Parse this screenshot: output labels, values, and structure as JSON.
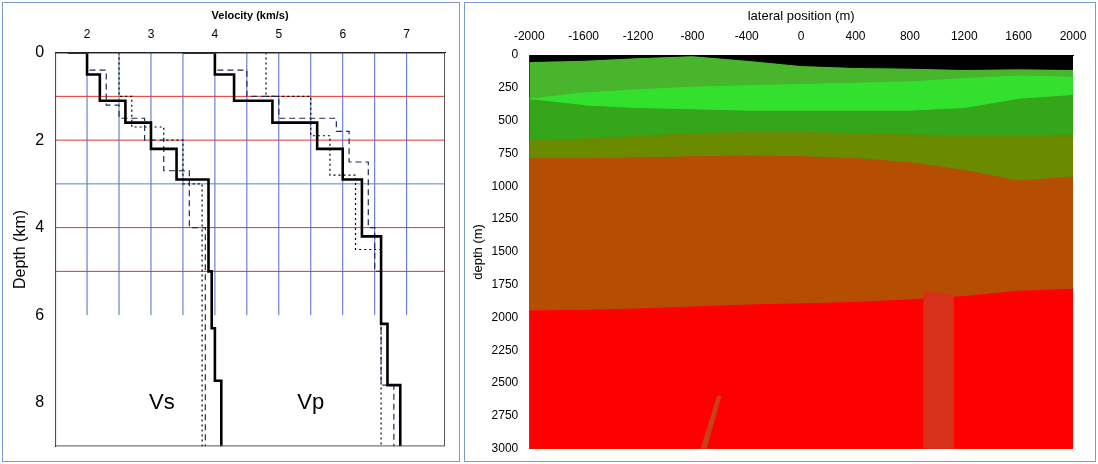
{
  "chart_data": [
    {
      "type": "line",
      "xlabel": "Velocity (km/s)",
      "ylabel": "Depth (km)",
      "xlim": [
        1.5,
        7.6
      ],
      "xticks": [
        2,
        3,
        4,
        5,
        6,
        7
      ],
      "ylim": [
        0,
        9
      ],
      "yticks": [
        0,
        2,
        4,
        6,
        8
      ],
      "grid": false,
      "series": [
        {
          "color": "#000000",
          "line_style": "solid",
          "x": [
            1.7,
            2.0,
            2.0,
            2.2,
            2.2,
            2.6,
            2.6,
            3.0,
            3.0,
            3.4,
            3.4,
            3.9,
            3.9,
            3.95,
            3.95,
            4.0,
            4.0,
            4.1,
            4.1
          ],
          "y": [
            0,
            0,
            0.5,
            0.5,
            1.1,
            1.1,
            1.6,
            1.6,
            2.2,
            2.2,
            2.9,
            2.9,
            5.0,
            5.0,
            6.3,
            6.3,
            7.5,
            7.5,
            9.0
          ]
        },
        {
          "color": "#1f2a55",
          "line_style": "dashed",
          "x": [
            2.0,
            2.0,
            2.3,
            2.3,
            2.5,
            2.5,
            2.9,
            2.9,
            3.2,
            3.2,
            3.6,
            3.6,
            3.85,
            3.85
          ],
          "y": [
            0,
            0.4,
            0.4,
            1.2,
            1.2,
            1.5,
            1.5,
            2.0,
            2.0,
            2.7,
            2.7,
            4.0,
            4.0,
            9.0
          ]
        },
        {
          "color": "#000000",
          "line_style": "dotted",
          "x": [
            2.5,
            2.5,
            2.7,
            2.7,
            3.2,
            3.2,
            3.5,
            3.5,
            3.8,
            3.8
          ],
          "y": [
            0,
            1.0,
            1.0,
            1.7,
            1.7,
            2.0,
            2.0,
            3.0,
            3.0,
            9.0
          ]
        },
        {
          "color": "#000000",
          "line_style": "solid",
          "x": [
            3.5,
            4.0,
            4.0,
            4.3,
            4.3,
            4.9,
            4.9,
            5.6,
            5.6,
            6.0,
            6.0,
            6.3,
            6.3,
            6.6,
            6.6,
            6.7,
            6.7,
            6.9,
            6.9
          ],
          "y": [
            0,
            0,
            0.5,
            0.5,
            1.1,
            1.1,
            1.6,
            1.6,
            2.2,
            2.2,
            2.9,
            2.9,
            4.2,
            4.2,
            6.2,
            6.2,
            7.6,
            7.6,
            9.0
          ]
        },
        {
          "color": "#1f2a55",
          "line_style": "dashed",
          "x": [
            4.0,
            4.0,
            4.5,
            4.5,
            5.0,
            5.0,
            5.9,
            5.9,
            6.1,
            6.1,
            6.4,
            6.4,
            6.5,
            6.5,
            6.6,
            6.6,
            6.8,
            6.8
          ],
          "y": [
            0,
            0.4,
            0.4,
            1.0,
            1.0,
            1.5,
            1.5,
            1.8,
            1.8,
            2.5,
            2.5,
            4.0,
            4.0,
            5.0,
            5.0,
            7.6,
            7.6,
            9.0
          ]
        },
        {
          "color": "#000000",
          "line_style": "dotted",
          "x": [
            4.8,
            4.8,
            5.5,
            5.5,
            5.8,
            5.8,
            6.2,
            6.2,
            6.6,
            6.6
          ],
          "y": [
            0,
            1.0,
            1.0,
            1.9,
            1.9,
            2.8,
            2.8,
            4.5,
            4.5,
            9.0
          ]
        }
      ],
      "hlines": [
        {
          "y": 1,
          "color": "#e8312c"
        },
        {
          "y": 2,
          "color": "#e8312c"
        },
        {
          "y": 3,
          "color": "#5b7fd4"
        },
        {
          "y": 4,
          "color": "#e8312c"
        },
        {
          "y": 5,
          "color": "#e8312c"
        }
      ],
      "vlines": {
        "x": [
          2,
          2.5,
          3,
          3.5,
          4,
          4.5,
          5,
          5.5,
          6,
          6.5,
          7
        ],
        "y_range": [
          0,
          6
        ],
        "color": "#4a6cc4"
      },
      "annotations": [
        {
          "text": "Vs",
          "x": 3.17,
          "y": 8.0
        },
        {
          "text": "Vp",
          "x": 5.5,
          "y": 8.0
        }
      ]
    },
    {
      "type": "area",
      "xlabel": "lateral position (m)",
      "ylabel": "depth (m)",
      "xlim": [
        -2000,
        2000
      ],
      "xticks": [
        -2000,
        -1600,
        -1200,
        -800,
        -400,
        0,
        400,
        800,
        1200,
        1600,
        2000
      ],
      "ylim": [
        0,
        3000
      ],
      "yticks": [
        0,
        250,
        500,
        750,
        1000,
        1250,
        1500,
        1750,
        2000,
        2250,
        2500,
        2750,
        3000
      ],
      "grid": false,
      "units": [
        {
          "color": "#48b52c",
          "x": [
            -2000,
            2000,
            2000,
            -2000
          ],
          "y": [
            0,
            0,
            3000,
            3000
          ]
        },
        {
          "color": "#35a51a",
          "x": [
            -2000,
            -1600,
            -1200,
            -800,
            -400,
            0,
            400,
            800,
            1200,
            1600,
            2000,
            2000,
            -2000
          ],
          "y": [
            340,
            380,
            400,
            410,
            420,
            420,
            420,
            420,
            400,
            330,
            300,
            3000,
            3000
          ]
        },
        {
          "color": "#33e02e",
          "x": [
            -2000,
            -1600,
            -1200,
            -800,
            -400,
            0,
            400,
            800,
            1200,
            1600,
            2000,
            2000,
            1600,
            1200,
            800,
            400,
            0,
            -400,
            -800,
            -1200,
            -1600
          ],
          "y": [
            335,
            290,
            265,
            245,
            235,
            225,
            215,
            205,
            180,
            160,
            170,
            300,
            330,
            400,
            420,
            420,
            420,
            420,
            410,
            400,
            380
          ]
        },
        {
          "color": "#6a8a00",
          "x": [
            -2000,
            -1600,
            -1200,
            -800,
            -400,
            0,
            400,
            800,
            1200,
            1600,
            2000,
            2000,
            -2000
          ],
          "y": [
            650,
            640,
            620,
            600,
            590,
            590,
            600,
            610,
            620,
            620,
            610,
            3000,
            3000
          ]
        },
        {
          "color": "#b54e00",
          "x": [
            -2000,
            -1600,
            -1200,
            -800,
            -400,
            0,
            400,
            800,
            1200,
            1600,
            2000,
            2000,
            -2000
          ],
          "y": [
            790,
            790,
            785,
            775,
            770,
            775,
            790,
            820,
            880,
            960,
            930,
            3000,
            3000
          ]
        },
        {
          "color": "#ff0000",
          "x": [
            -2000,
            -1600,
            -1200,
            -800,
            -400,
            0,
            400,
            800,
            1200,
            1600,
            2000,
            2000,
            -2000
          ],
          "y": [
            1950,
            1945,
            1935,
            1920,
            1905,
            1895,
            1885,
            1865,
            1840,
            1800,
            1785,
            3000,
            3000
          ]
        },
        {
          "color": "#d7311b",
          "x": [
            900,
            1120,
            1120,
            900
          ],
          "y": [
            1800,
            1830,
            3000,
            3000
          ]
        },
        {
          "color": "#c8401c",
          "x": [
            -740,
            -700,
            -590,
            -620
          ],
          "y": [
            3000,
            3000,
            2600,
            2600
          ]
        },
        {
          "color": "#000000",
          "x": [
            -2000,
            2000,
            2000,
            1600,
            1200,
            800,
            400,
            0,
            -400,
            -800,
            -1200,
            -1600,
            -2000
          ],
          "y": [
            0,
            0,
            110,
            105,
            110,
            100,
            95,
            80,
            40,
            5,
            20,
            40,
            50
          ]
        }
      ]
    }
  ]
}
